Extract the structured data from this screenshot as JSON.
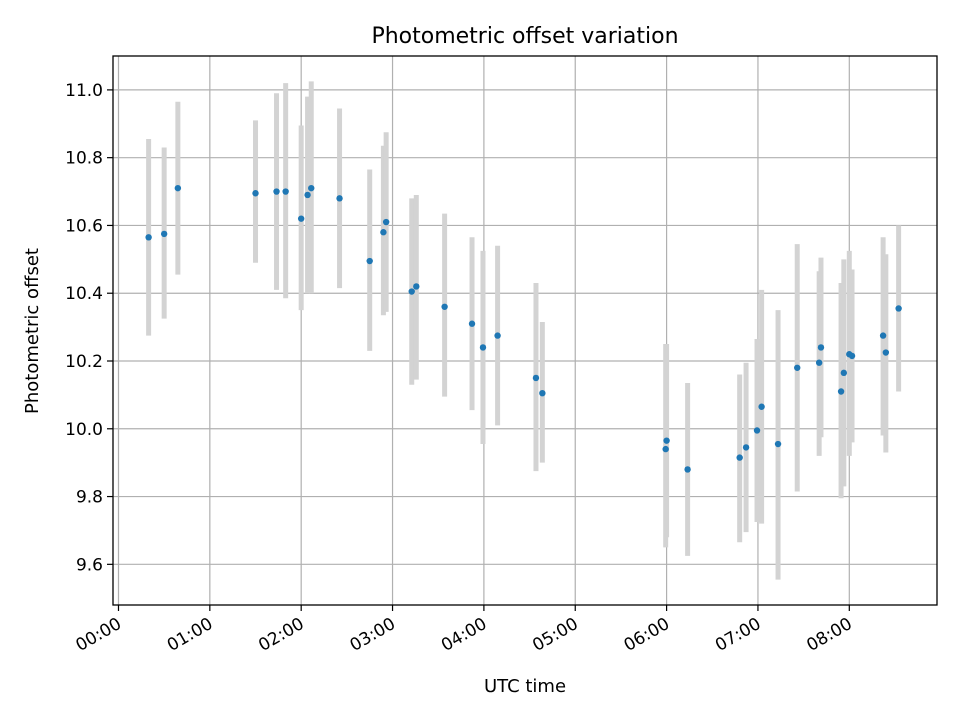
{
  "chart_data": {
    "type": "scatter",
    "title": "Photometric offset variation",
    "xlabel": "UTC time",
    "ylabel": "Photometric offset",
    "grid": true,
    "xlim_hours": [
      -0.06,
      8.96
    ],
    "ylim": [
      9.48,
      11.1
    ],
    "x_ticks": [
      {
        "value": 0,
        "label": "00:00"
      },
      {
        "value": 1,
        "label": "01:00"
      },
      {
        "value": 2,
        "label": "02:00"
      },
      {
        "value": 3,
        "label": "03:00"
      },
      {
        "value": 4,
        "label": "04:00"
      },
      {
        "value": 5,
        "label": "05:00"
      },
      {
        "value": 6,
        "label": "06:00"
      },
      {
        "value": 7,
        "label": "07:00"
      },
      {
        "value": 8,
        "label": "08:00"
      }
    ],
    "y_ticks": [
      {
        "value": 9.6,
        "label": "9.6"
      },
      {
        "value": 9.8,
        "label": "9.8"
      },
      {
        "value": 10.0,
        "label": "10.0"
      },
      {
        "value": 10.2,
        "label": "10.2"
      },
      {
        "value": 10.4,
        "label": "10.4"
      },
      {
        "value": 10.6,
        "label": "10.6"
      },
      {
        "value": 10.8,
        "label": "10.8"
      },
      {
        "value": 11.0,
        "label": "11.0"
      }
    ],
    "series": [
      {
        "name": "offset",
        "color": "#1f77b4",
        "error_color": "#d3d3d3",
        "points": [
          {
            "x": 0.33,
            "y": 10.565,
            "lo": 10.275,
            "hi": 10.855
          },
          {
            "x": 0.5,
            "y": 10.575,
            "lo": 10.325,
            "hi": 10.83
          },
          {
            "x": 0.65,
            "y": 10.71,
            "lo": 10.455,
            "hi": 10.965
          },
          {
            "x": 1.5,
            "y": 10.695,
            "lo": 10.49,
            "hi": 10.91
          },
          {
            "x": 1.73,
            "y": 10.7,
            "lo": 10.41,
            "hi": 10.99
          },
          {
            "x": 1.83,
            "y": 10.7,
            "lo": 10.385,
            "hi": 11.02
          },
          {
            "x": 2.0,
            "y": 10.62,
            "lo": 10.35,
            "hi": 10.895
          },
          {
            "x": 2.07,
            "y": 10.69,
            "lo": 10.4,
            "hi": 10.98
          },
          {
            "x": 2.11,
            "y": 10.71,
            "lo": 10.4,
            "hi": 11.025
          },
          {
            "x": 2.42,
            "y": 10.68,
            "lo": 10.415,
            "hi": 10.945
          },
          {
            "x": 2.75,
            "y": 10.495,
            "lo": 10.23,
            "hi": 10.765
          },
          {
            "x": 2.9,
            "y": 10.58,
            "lo": 10.335,
            "hi": 10.835
          },
          {
            "x": 2.93,
            "y": 10.61,
            "lo": 10.345,
            "hi": 10.875
          },
          {
            "x": 3.21,
            "y": 10.405,
            "lo": 10.13,
            "hi": 10.68
          },
          {
            "x": 3.26,
            "y": 10.42,
            "lo": 10.145,
            "hi": 10.69
          },
          {
            "x": 3.57,
            "y": 10.36,
            "lo": 10.095,
            "hi": 10.635
          },
          {
            "x": 3.87,
            "y": 10.31,
            "lo": 10.055,
            "hi": 10.565
          },
          {
            "x": 3.99,
            "y": 10.24,
            "lo": 9.955,
            "hi": 10.525
          },
          {
            "x": 4.15,
            "y": 10.275,
            "lo": 10.01,
            "hi": 10.54
          },
          {
            "x": 4.57,
            "y": 10.15,
            "lo": 9.875,
            "hi": 10.43
          },
          {
            "x": 4.64,
            "y": 10.105,
            "lo": 9.9,
            "hi": 10.315
          },
          {
            "x": 5.99,
            "y": 9.94,
            "lo": 9.65,
            "hi": 10.25
          },
          {
            "x": 6.0,
            "y": 9.965,
            "lo": 9.68,
            "hi": 10.25
          },
          {
            "x": 6.23,
            "y": 9.88,
            "lo": 9.625,
            "hi": 10.135
          },
          {
            "x": 6.8,
            "y": 9.915,
            "lo": 9.665,
            "hi": 10.16
          },
          {
            "x": 6.87,
            "y": 9.945,
            "lo": 9.695,
            "hi": 10.195
          },
          {
            "x": 6.99,
            "y": 9.995,
            "lo": 9.725,
            "hi": 10.265
          },
          {
            "x": 7.04,
            "y": 10.065,
            "lo": 9.72,
            "hi": 10.41
          },
          {
            "x": 7.22,
            "y": 9.955,
            "lo": 9.555,
            "hi": 10.35
          },
          {
            "x": 7.43,
            "y": 10.18,
            "lo": 9.815,
            "hi": 10.545
          },
          {
            "x": 7.67,
            "y": 10.195,
            "lo": 9.92,
            "hi": 10.465
          },
          {
            "x": 7.69,
            "y": 10.24,
            "lo": 9.975,
            "hi": 10.505
          },
          {
            "x": 7.91,
            "y": 10.11,
            "lo": 9.795,
            "hi": 10.43
          },
          {
            "x": 7.94,
            "y": 10.165,
            "lo": 9.83,
            "hi": 10.5
          },
          {
            "x": 8.0,
            "y": 10.22,
            "lo": 9.92,
            "hi": 10.525
          },
          {
            "x": 8.03,
            "y": 10.215,
            "lo": 9.96,
            "hi": 10.47
          },
          {
            "x": 8.37,
            "y": 10.275,
            "lo": 9.98,
            "hi": 10.565
          },
          {
            "x": 8.4,
            "y": 10.225,
            "lo": 9.93,
            "hi": 10.515
          },
          {
            "x": 8.54,
            "y": 10.355,
            "lo": 10.11,
            "hi": 10.6
          }
        ]
      }
    ]
  }
}
